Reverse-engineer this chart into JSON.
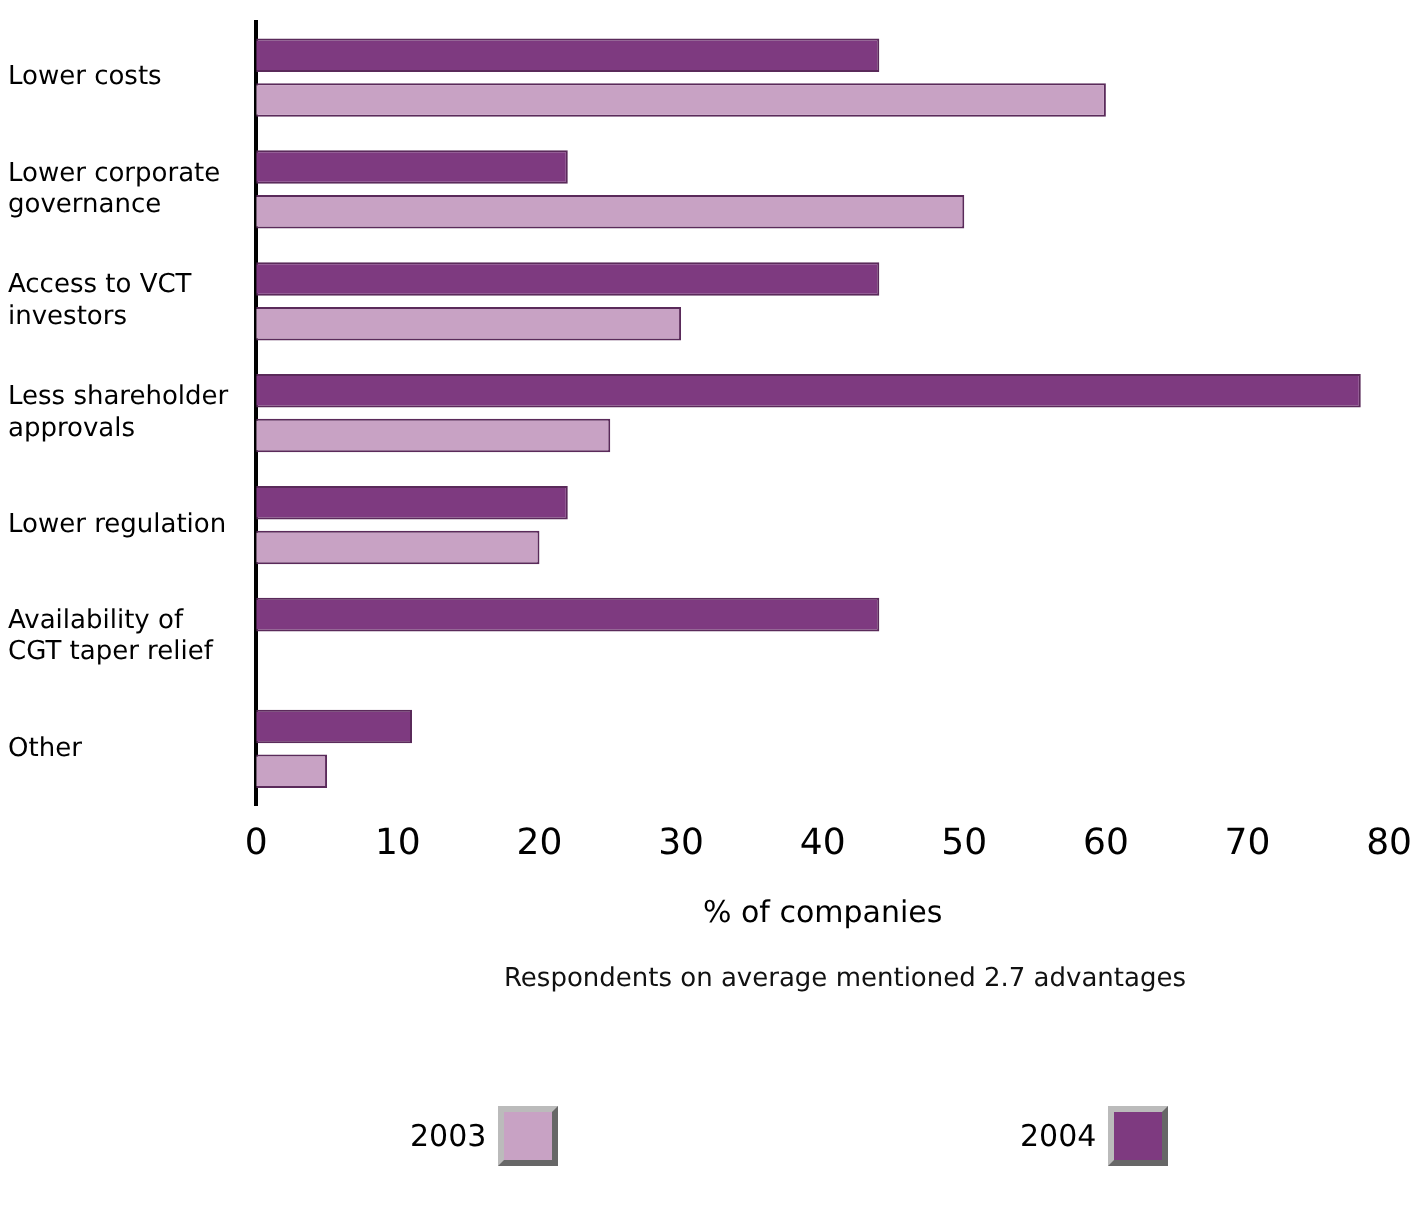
{
  "chart_data": {
    "type": "bar",
    "orientation": "horizontal",
    "xlabel": "% of companies",
    "annotations": [
      "Respondents on average mentioned 2.7 advantages"
    ],
    "categories": [
      "Lower costs",
      "Lower corporate governance",
      "Access to VCT investors",
      "Less shareholder approvals",
      "Lower regulation",
      "Availability of CGT taper relief",
      "Other"
    ],
    "series": [
      {
        "name": "2004",
        "color": "#7e3a80",
        "values": [
          44,
          22,
          44,
          78,
          22,
          44,
          11
        ]
      },
      {
        "name": "2003",
        "color": "#c8a2c4",
        "values": [
          60,
          50,
          30,
          25,
          20,
          null,
          5
        ]
      }
    ],
    "xlim": [
      0,
      80
    ],
    "xticks": [
      0,
      10,
      20,
      30,
      40,
      50,
      60,
      70,
      80
    ],
    "grid": false,
    "legend": "bottom"
  }
}
